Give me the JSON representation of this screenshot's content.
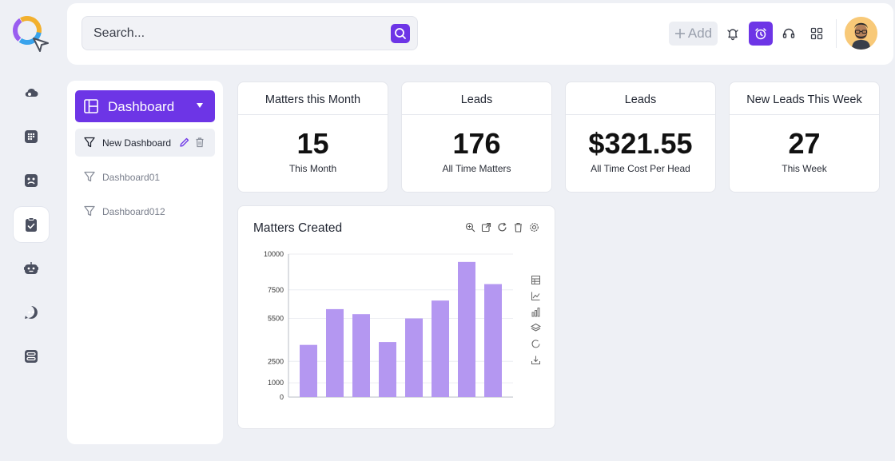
{
  "search": {
    "placeholder": "Search..."
  },
  "topbar": {
    "add_label": "Add",
    "icons": [
      "bell-icon",
      "alarm-clock-icon",
      "headset-icon",
      "grid-icon"
    ]
  },
  "sidebar": {
    "icons": [
      "cloud-icon",
      "apps-grid-icon",
      "profile-card-icon",
      "clipboard-check-icon",
      "bot-icon",
      "robot-chat-icon",
      "workflow-icon"
    ],
    "active_index": 3
  },
  "dashboards": {
    "header_label": "Dashboard",
    "items": [
      {
        "label": "New Dashboard",
        "active": true
      },
      {
        "label": "Dashboard01",
        "active": false
      },
      {
        "label": "Dashboard012",
        "active": false
      }
    ]
  },
  "stats": [
    {
      "title": "Matters this Month",
      "value": "15",
      "subtitle": "This Month"
    },
    {
      "title": "Leads",
      "value": "176",
      "subtitle": "All Time Matters"
    },
    {
      "title": "Leads",
      "value": "$321.55",
      "subtitle": "All Time Cost Per Head"
    },
    {
      "title": "New Leads This Week",
      "value": "27",
      "subtitle": "This Week"
    }
  ],
  "chart_panel": {
    "title": "Matters Created",
    "toolbar": [
      "zoom-in-icon",
      "open-external-icon",
      "refresh-icon",
      "delete-icon",
      "settings-icon"
    ],
    "side_tools": [
      "table-view-icon",
      "line-chart-icon",
      "bar-chart-icon",
      "stack-icon",
      "restore-icon",
      "download-icon"
    ]
  },
  "colors": {
    "accent": "#6d35e6",
    "bar": "#b497f1",
    "background": "#eef0f5"
  },
  "chart_data": {
    "type": "bar",
    "title": "Matters Created",
    "xlabel": "",
    "ylabel": "",
    "categories": [
      "",
      "",
      "",
      "",
      "",
      "",
      "",
      ""
    ],
    "values": [
      3650,
      6150,
      5800,
      3850,
      5500,
      6750,
      9450,
      7900
    ],
    "yticks": [
      0,
      1000,
      2500,
      5500,
      7500,
      10000
    ],
    "yticks_labels": [
      "0",
      "1000",
      "2500",
      "5500",
      "7500",
      "10000"
    ],
    "ylim": [
      0,
      10000
    ],
    "grid": true
  }
}
